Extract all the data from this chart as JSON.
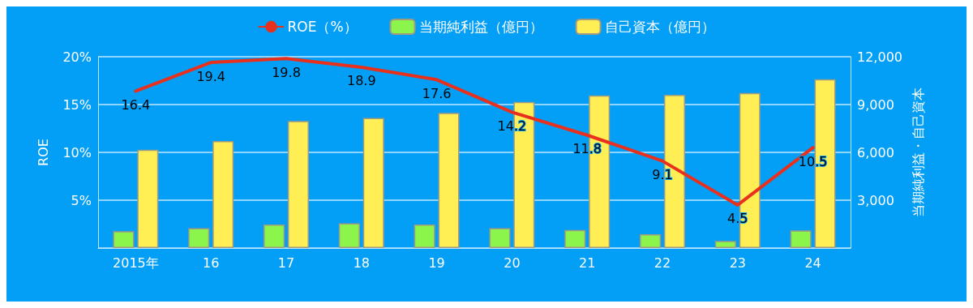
{
  "chart_data": {
    "type": "bar",
    "categories": [
      "2015年",
      "16",
      "17",
      "18",
      "19",
      "20",
      "21",
      "22",
      "23",
      "24"
    ],
    "ylabel": "ROE",
    "y2label": "当期純利益・自己資本",
    "series": [
      {
        "name": "ROE（%）",
        "type": "line",
        "color": "#e8301c",
        "axis": "y",
        "data_labels": true,
        "values": [
          16.4,
          19.4,
          19.8,
          18.9,
          17.6,
          14.2,
          11.8,
          9.1,
          4.5,
          10.5
        ]
      },
      {
        "name": "当期純利益（億円）",
        "color": "#8cf54c",
        "axis": "y2",
        "values": [
          1050,
          1250,
          1470,
          1550,
          1470,
          1240,
          1130,
          860,
          440,
          1100
        ]
      },
      {
        "name": "自己資本（億円）",
        "color": "#ffef55",
        "axis": "y2",
        "values": [
          6160,
          6710,
          7970,
          8160,
          8480,
          9160,
          9570,
          9610,
          9720,
          10590
        ]
      }
    ],
    "ylim": [
      0,
      20
    ],
    "yticks": [
      {
        "value": 0,
        "label": null
      },
      {
        "value": 5,
        "label": "5%"
      },
      {
        "value": 10,
        "label": "10%"
      },
      {
        "value": 15,
        "label": "15%"
      },
      {
        "value": 20,
        "label": "20%"
      }
    ],
    "y2lim": [
      0,
      12000
    ],
    "y2ticks": [
      {
        "value": 0,
        "label": null
      },
      {
        "value": 3000,
        "label": "3,000"
      },
      {
        "value": 6000,
        "label": "6,000"
      },
      {
        "value": 9000,
        "label": "9,000"
      },
      {
        "value": 12000,
        "label": "12,000"
      }
    ],
    "grid": "y",
    "legend": "top",
    "marker": "none",
    "line_style": "solid"
  }
}
